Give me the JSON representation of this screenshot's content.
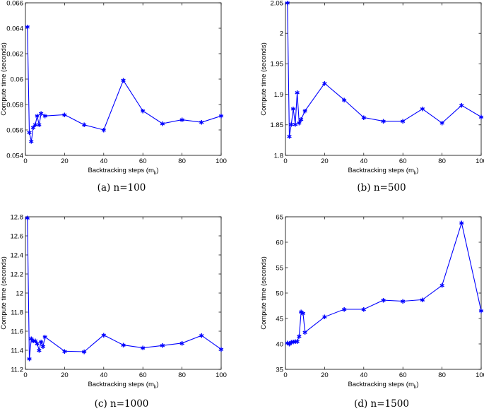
{
  "chart_data": [
    {
      "type": "line",
      "caption": "(a)  n=100",
      "xlabel": "Backtracking steps (m",
      "xlabel_sub": "k",
      "xlabel_end": ")",
      "ylabel": "Compute time (seconds)",
      "xlim": [
        0,
        100
      ],
      "ylim": [
        0.054,
        0.066
      ],
      "xticks": [
        0,
        20,
        40,
        60,
        80,
        100
      ],
      "yticks": [
        0.054,
        0.056,
        0.058,
        0.06,
        0.062,
        0.064,
        0.066
      ],
      "ytick_labels": [
        "0.054",
        "0.056",
        "0.058",
        "0.06",
        "0.062",
        "0.064",
        "0.066"
      ],
      "series": [
        {
          "color": "#0000ff",
          "marker": "star",
          "x": [
            1,
            2,
            3,
            4,
            5,
            6,
            7,
            8,
            10,
            20,
            30,
            40,
            50,
            60,
            70,
            80,
            90,
            100
          ],
          "y": [
            0.0641,
            0.0558,
            0.0551,
            0.0562,
            0.0564,
            0.0571,
            0.0564,
            0.0573,
            0.0571,
            0.0572,
            0.0564,
            0.056,
            0.0599,
            0.0575,
            0.0565,
            0.0568,
            0.0566,
            0.0571
          ]
        }
      ]
    },
    {
      "type": "line",
      "caption": "(b)  n=500",
      "xlabel": "Backtracking steps (m",
      "xlabel_sub": "k",
      "xlabel_end": ")",
      "ylabel": "Compute time (seconds)",
      "xlim": [
        0,
        100
      ],
      "ylim": [
        1.8,
        2.05
      ],
      "xticks": [
        0,
        20,
        40,
        60,
        80,
        100
      ],
      "yticks": [
        1.8,
        1.85,
        1.9,
        1.95,
        2,
        2.05
      ],
      "ytick_labels": [
        "1.8",
        "1.85",
        "1.9",
        "1.95",
        "2",
        "2.05"
      ],
      "series": [
        {
          "color": "#0000ff",
          "marker": "star",
          "x": [
            1,
            2,
            3,
            4,
            5,
            6,
            7,
            8,
            10,
            20,
            30,
            40,
            50,
            60,
            70,
            80,
            90,
            100
          ],
          "y": [
            2.05,
            1.831,
            1.851,
            1.876,
            1.851,
            1.903,
            1.853,
            1.859,
            1.873,
            1.918,
            1.891,
            1.862,
            1.856,
            1.856,
            1.876,
            1.853,
            1.882,
            1.863
          ]
        }
      ]
    },
    {
      "type": "line",
      "caption": "(c)  n=1000",
      "xlabel": "Backtracking steps (m",
      "xlabel_sub": "k",
      "xlabel_end": ")",
      "ylabel": "Compute time (seconds)",
      "xlim": [
        0,
        100
      ],
      "ylim": [
        11.2,
        12.8
      ],
      "xticks": [
        0,
        20,
        40,
        60,
        80,
        100
      ],
      "yticks": [
        11.2,
        11.4,
        11.6,
        11.8,
        12,
        12.2,
        12.4,
        12.6,
        12.8
      ],
      "ytick_labels": [
        "11.2",
        "11.4",
        "11.6",
        "11.8",
        "12",
        "12.2",
        "12.4",
        "12.6",
        "12.8"
      ],
      "series": [
        {
          "color": "#0000ff",
          "marker": "star",
          "x": [
            1,
            2,
            3,
            4,
            5,
            6,
            7,
            8,
            9,
            10,
            20,
            30,
            40,
            50,
            60,
            70,
            80,
            90,
            100
          ],
          "y": [
            12.79,
            11.31,
            11.52,
            11.5,
            11.5,
            11.47,
            11.4,
            11.49,
            11.44,
            11.54,
            11.39,
            11.385,
            11.56,
            11.455,
            11.425,
            11.45,
            11.475,
            11.555,
            11.41
          ]
        }
      ]
    },
    {
      "type": "line",
      "caption": "(d)  n=1500",
      "xlabel": "Backtracking steps (m",
      "xlabel_sub": "k",
      "xlabel_end": ")",
      "ylabel": "Compute time (seconds)",
      "xlim": [
        0,
        100
      ],
      "ylim": [
        35,
        65
      ],
      "xticks": [
        0,
        20,
        40,
        60,
        80,
        100
      ],
      "yticks": [
        35,
        40,
        45,
        50,
        55,
        60,
        65
      ],
      "ytick_labels": [
        "35",
        "40",
        "45",
        "50",
        "55",
        "60",
        "65"
      ],
      "series": [
        {
          "color": "#0000ff",
          "marker": "star",
          "x": [
            1,
            2,
            3,
            4,
            5,
            6,
            7,
            8,
            9,
            10,
            20,
            30,
            40,
            50,
            60,
            70,
            80,
            90,
            100
          ],
          "y": [
            40.2,
            40.0,
            40.3,
            40.4,
            40.5,
            40.5,
            41.5,
            46.3,
            46.0,
            42.3,
            45.3,
            46.8,
            46.8,
            48.6,
            48.4,
            48.7,
            51.5,
            63.8,
            46.5
          ]
        }
      ]
    }
  ]
}
